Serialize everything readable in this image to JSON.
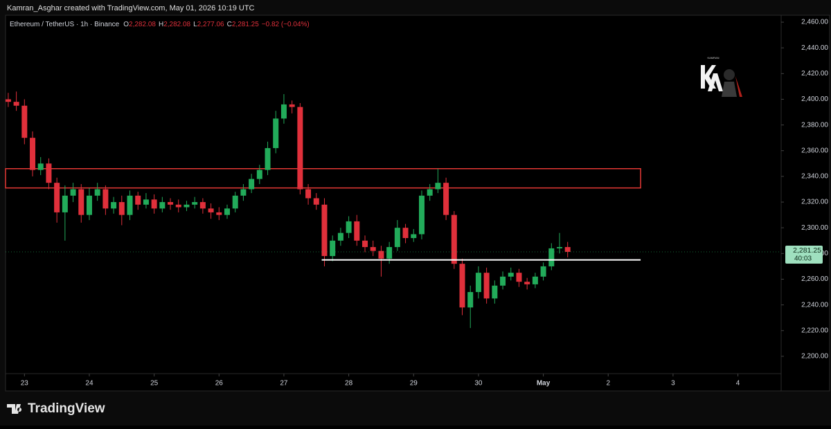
{
  "chart_data": {
    "type": "candlestick",
    "attribution": "Kamran_Asghar created with TradingView.com, May 01, 2026 10:19 UTC",
    "symbol": "Ethereum / TetherUS · 1h · Binance",
    "ohlc_legend": [
      {
        "key": "O",
        "value": "2,282.08"
      },
      {
        "key": "H",
        "value": "2,282.08"
      },
      {
        "key": "L",
        "value": "2,277.06"
      },
      {
        "key": "C",
        "value": "2,281.25"
      }
    ],
    "change": "−0.82 (−0.04%)",
    "watermark": "KAMRAN",
    "footer": "TradingView",
    "up_color": "#22ab5a",
    "down_color": "#e0303b",
    "xlim": [
      -7,
      280
    ],
    "xticks": [
      {
        "value": 0,
        "label": "23"
      },
      {
        "value": 24,
        "label": "24"
      },
      {
        "value": 48,
        "label": "25"
      },
      {
        "value": 72,
        "label": "26"
      },
      {
        "value": 96,
        "label": "27"
      },
      {
        "value": 120,
        "label": "28"
      },
      {
        "value": 144,
        "label": "29"
      },
      {
        "value": 168,
        "label": "30"
      },
      {
        "value": 192,
        "label": "May"
      },
      {
        "value": 216,
        "label": "2"
      },
      {
        "value": 240,
        "label": "3"
      },
      {
        "value": 264,
        "label": "4"
      }
    ],
    "ylim": [
      2186.5,
      2465.4
    ],
    "yticks": [
      {
        "value": 2200,
        "label": "2,200.00"
      },
      {
        "value": 2220,
        "label": "2,220.00"
      },
      {
        "value": 2240,
        "label": "2,240.00"
      },
      {
        "value": 2260,
        "label": "2,260.00"
      },
      {
        "value": 2280,
        "label": "2,280.00"
      },
      {
        "value": 2300,
        "label": "2,300.00"
      },
      {
        "value": 2320,
        "label": "2,320.00"
      },
      {
        "value": 2340,
        "label": "2,340.00"
      },
      {
        "value": 2360,
        "label": "2,360.00"
      },
      {
        "value": 2380,
        "label": "2,380.00"
      },
      {
        "value": 2400,
        "label": "2,400.00"
      },
      {
        "value": 2420,
        "label": "2,420.00"
      },
      {
        "value": 2440,
        "label": "2,440.00"
      },
      {
        "value": 2460,
        "label": "2,460.00"
      }
    ],
    "x": [
      -6,
      -3,
      0,
      3,
      6,
      9,
      12,
      15,
      18,
      21,
      24,
      27,
      30,
      33,
      36,
      39,
      42,
      45,
      48,
      51,
      54,
      57,
      60,
      63,
      66,
      69,
      72,
      75,
      78,
      81,
      84,
      87,
      90,
      93,
      96,
      99,
      102,
      105,
      108,
      111,
      114,
      117,
      120,
      123,
      126,
      129,
      132,
      135,
      138,
      141,
      144,
      147,
      150,
      153,
      156,
      159,
      162,
      165,
      168,
      171,
      174,
      177,
      180,
      183,
      186,
      189,
      192,
      195,
      198,
      201
    ],
    "open": [
      2400,
      2398,
      2395,
      2370,
      2345,
      2350,
      2335,
      2312,
      2325,
      2330,
      2310,
      2325,
      2330,
      2315,
      2320,
      2310,
      2325,
      2318,
      2322,
      2315,
      2320,
      2318,
      2316,
      2318,
      2320,
      2315,
      2312,
      2310,
      2315,
      2325,
      2330,
      2338,
      2345,
      2362,
      2385,
      2396,
      2394,
      2330,
      2323,
      2318,
      2278,
      2290,
      2296,
      2305,
      2290,
      2285,
      2282,
      2276,
      2285,
      2300,
      2292,
      2295,
      2325,
      2330,
      2335,
      2310,
      2272,
      2238,
      2250,
      2265,
      2245,
      2255,
      2262,
      2265,
      2258,
      2256,
      2262,
      2270,
      2284,
      2285
    ],
    "high": [
      2405,
      2406,
      2400,
      2375,
      2355,
      2354,
      2339,
      2333,
      2335,
      2334,
      2331,
      2335,
      2333,
      2324,
      2325,
      2329,
      2328,
      2327,
      2326,
      2324,
      2323,
      2322,
      2321,
      2324,
      2323,
      2319,
      2316,
      2318,
      2328,
      2334,
      2342,
      2349,
      2367,
      2391,
      2404,
      2399,
      2397,
      2334,
      2327,
      2323,
      2294,
      2300,
      2309,
      2310,
      2294,
      2290,
      2286,
      2289,
      2306,
      2303,
      2299,
      2329,
      2334,
      2346,
      2339,
      2313,
      2276,
      2255,
      2270,
      2269,
      2259,
      2266,
      2269,
      2268,
      2261,
      2265,
      2273,
      2288,
      2296,
      2289
    ],
    "low": [
      2394,
      2391,
      2365,
      2340,
      2341,
      2330,
      2304,
      2290,
      2320,
      2304,
      2306,
      2321,
      2310,
      2311,
      2302,
      2306,
      2314,
      2315,
      2311,
      2312,
      2314,
      2312,
      2313,
      2315,
      2311,
      2307,
      2306,
      2307,
      2312,
      2321,
      2327,
      2334,
      2341,
      2358,
      2381,
      2389,
      2326,
      2318,
      2314,
      2270,
      2274,
      2286,
      2292,
      2286,
      2281,
      2278,
      2262,
      2272,
      2282,
      2288,
      2289,
      2291,
      2321,
      2327,
      2306,
      2268,
      2232,
      2222,
      2245,
      2241,
      2241,
      2252,
      2259,
      2254,
      2252,
      2253,
      2259,
      2267,
      2280,
      2277
    ],
    "close": [
      2398,
      2395,
      2370,
      2345,
      2350,
      2335,
      2312,
      2325,
      2330,
      2310,
      2325,
      2330,
      2315,
      2320,
      2310,
      2325,
      2318,
      2322,
      2315,
      2320,
      2318,
      2316,
      2318,
      2320,
      2315,
      2312,
      2310,
      2315,
      2325,
      2330,
      2338,
      2345,
      2362,
      2385,
      2396,
      2394,
      2330,
      2323,
      2318,
      2278,
      2290,
      2296,
      2305,
      2290,
      2285,
      2282,
      2276,
      2285,
      2300,
      2292,
      2295,
      2325,
      2330,
      2335,
      2310,
      2272,
      2238,
      2250,
      2265,
      2245,
      2255,
      2262,
      2265,
      2258,
      2256,
      2262,
      2270,
      2284,
      2285,
      2281.25
    ],
    "zones": [
      {
        "top": 2346,
        "bottom": 2331,
        "x": [
          -7,
          228
        ],
        "color": "#e53935"
      }
    ],
    "hlines": [
      {
        "value": 2275,
        "x": [
          110,
          228
        ],
        "color": "#ffffff"
      }
    ],
    "last_price": 2281.25,
    "last_price_label": "2,281.25",
    "countdown": "40:03"
  }
}
